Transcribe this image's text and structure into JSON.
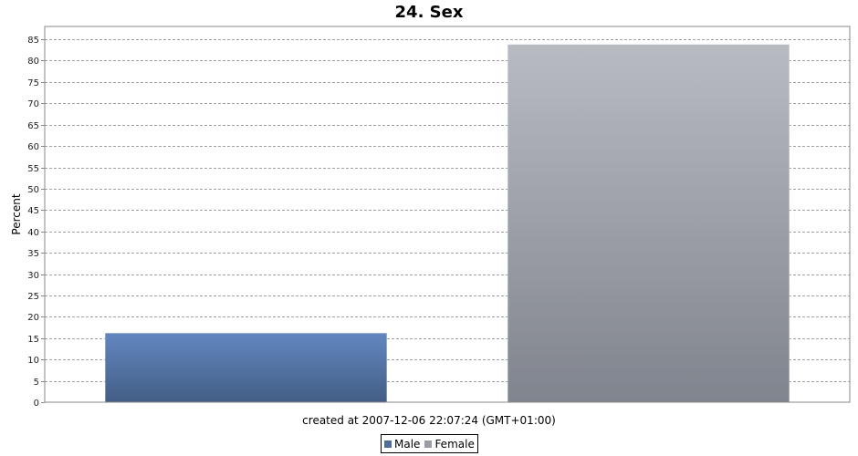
{
  "chart_data": {
    "type": "bar",
    "title": "24. Sex",
    "xlabel": "",
    "ylabel": "Percent",
    "categories": [
      "Male",
      "Female"
    ],
    "values": [
      16.2,
      83.8
    ],
    "ylim": [
      0,
      88
    ],
    "yticks": [
      0,
      5,
      10,
      15,
      20,
      25,
      30,
      35,
      40,
      45,
      50,
      55,
      60,
      65,
      70,
      75,
      80,
      85
    ],
    "grid": true,
    "legend_position": "bottom",
    "colors": {
      "Male": {
        "top": "#6287c0",
        "bottom": "#435e85",
        "legend": "#4f6d98"
      },
      "Female": {
        "top": "#b8bbc2",
        "bottom": "#80848d",
        "legend": "#9a9da5"
      }
    }
  },
  "footer": "created at 2007-12-06 22:07:24 (GMT+01:00)",
  "legend": [
    "Male",
    "Female"
  ]
}
